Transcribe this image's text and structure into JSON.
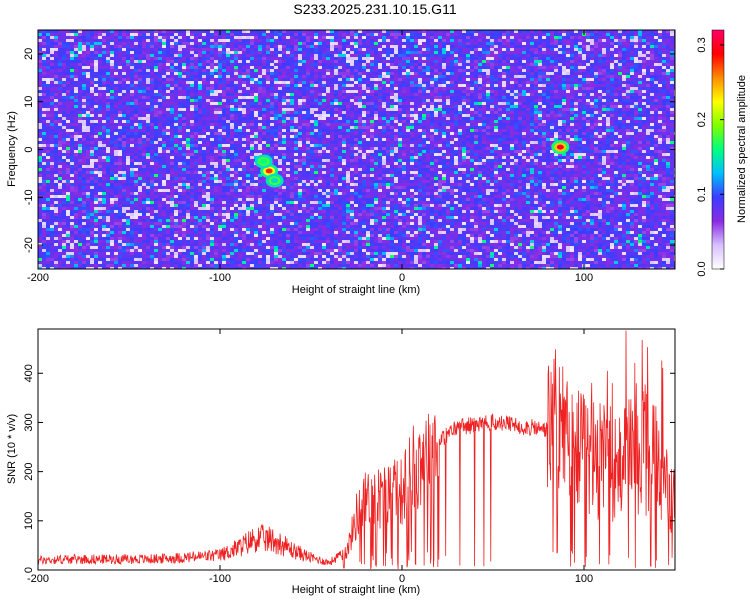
{
  "figure": {
    "title": "S233.2025.231.10.15.G11"
  },
  "colors": {
    "heatmap_scale": [
      "#ffffff",
      "#d8c0ff",
      "#8a2be2",
      "#3c3cff",
      "#00bfff",
      "#00ff7f",
      "#7fff00",
      "#ffff00",
      "#ff8c00",
      "#ff0000",
      "#ff0066"
    ],
    "snr_line": "#ee2222",
    "frame": "#000000"
  },
  "chart_data": [
    {
      "type": "heatmap",
      "title": "S233.2025.231.10.15.G11",
      "xlabel": "Height of straight line (km)",
      "ylabel": "Frequency (Hz)",
      "xlim": [
        -200,
        150
      ],
      "ylim": [
        -25,
        25
      ],
      "x_ticks": [
        -200,
        -100,
        0,
        100
      ],
      "y_ticks": [
        -20,
        -10,
        0,
        10,
        20
      ],
      "colorbar": {
        "label": "Normalized spectral amplitude",
        "range": [
          0,
          0.32
        ],
        "ticks": [
          "0.0",
          "0.1",
          "0.2",
          "0.3"
        ],
        "tick_values": [
          0.0,
          0.1,
          0.2,
          0.3
        ]
      },
      "background_level": 0.05,
      "peaks": [
        {
          "x": 87,
          "y": 0.5,
          "value": 0.3
        },
        {
          "x": -73,
          "y": -4.5,
          "value": 0.28
        },
        {
          "x": -76,
          "y": -2.5,
          "value": 0.16
        },
        {
          "x": -70,
          "y": -6.5,
          "value": 0.14
        }
      ]
    },
    {
      "type": "line",
      "xlabel": "Height of straight line (km)",
      "ylabel": "SNR (10 * v/v)",
      "xlim": [
        -200,
        150
      ],
      "ylim": [
        0,
        490
      ],
      "x_ticks": [
        -200,
        -100,
        0,
        100
      ],
      "y_ticks": [
        0,
        100,
        200,
        300,
        400
      ],
      "grid": false,
      "series": [
        {
          "x": [
            -200,
            -180,
            -160,
            -140,
            -120,
            -100,
            -90,
            -80,
            -70,
            -60,
            -50,
            -40,
            -30,
            -25,
            -20,
            -10,
            0,
            10,
            20,
            30,
            40,
            50,
            60,
            70,
            80,
            85,
            90,
            100,
            110,
            120,
            130,
            140,
            150
          ],
          "values": [
            20,
            22,
            22,
            22,
            25,
            30,
            45,
            65,
            60,
            40,
            25,
            15,
            40,
            110,
            140,
            150,
            160,
            230,
            260,
            290,
            295,
            300,
            295,
            290,
            285,
            310,
            260,
            230,
            220,
            210,
            240,
            220,
            130
          ]
        }
      ]
    }
  ]
}
